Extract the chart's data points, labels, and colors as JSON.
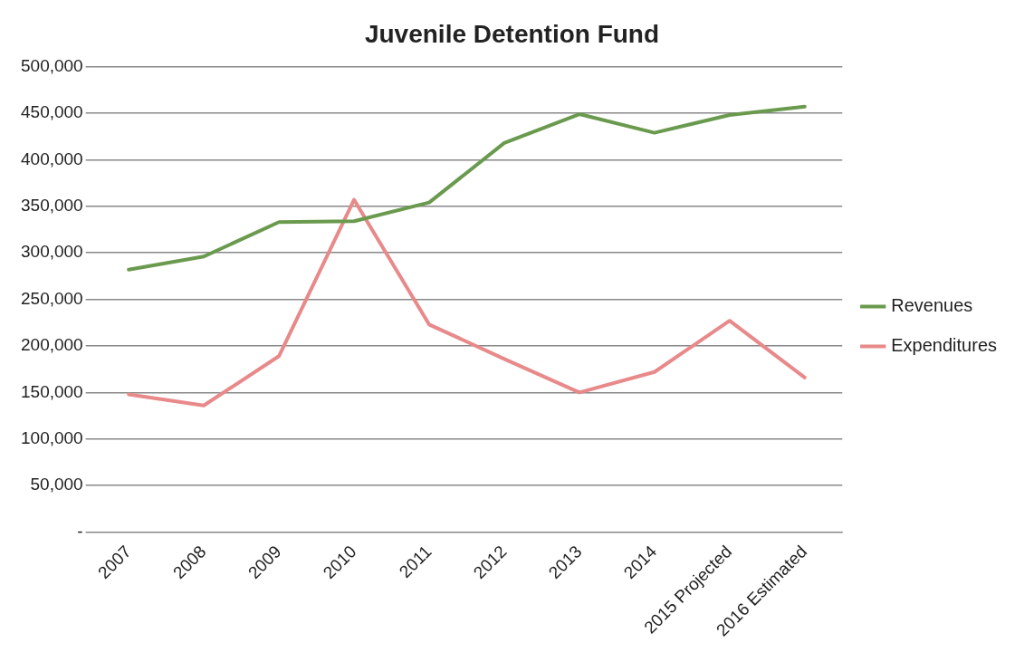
{
  "chart_data": {
    "type": "line",
    "title": "Juvenile Detention Fund",
    "categories": [
      "2007",
      "2008",
      "2009",
      "2010",
      "2011",
      "2012",
      "2013",
      "2014",
      "2015 Projected",
      "2016 Estimated"
    ],
    "series": [
      {
        "name": "Revenues",
        "color": "#6a9a4e",
        "values": [
          282000,
          296000,
          333000,
          334000,
          354000,
          418000,
          449000,
          429000,
          448000,
          457000
        ]
      },
      {
        "name": "Expenditures",
        "color": "#e8898a",
        "values": [
          148000,
          136000,
          189000,
          357000,
          223000,
          186000,
          150000,
          172000,
          227000,
          166000
        ]
      }
    ],
    "ylim": [
      0,
      500000
    ],
    "yticks": [
      {
        "value": 0,
        "label": "-"
      },
      {
        "value": 50000,
        "label": "50,000"
      },
      {
        "value": 100000,
        "label": "100,000"
      },
      {
        "value": 150000,
        "label": "150,000"
      },
      {
        "value": 200000,
        "label": "200,000"
      },
      {
        "value": 250000,
        "label": "250,000"
      },
      {
        "value": 300000,
        "label": "300,000"
      },
      {
        "value": 350000,
        "label": "350,000"
      },
      {
        "value": 400000,
        "label": "400,000"
      },
      {
        "value": 450000,
        "label": "450,000"
      },
      {
        "value": 500000,
        "label": "500,000"
      }
    ],
    "grid": "y",
    "legend": "right",
    "marker": "none",
    "line_style": "solid"
  }
}
